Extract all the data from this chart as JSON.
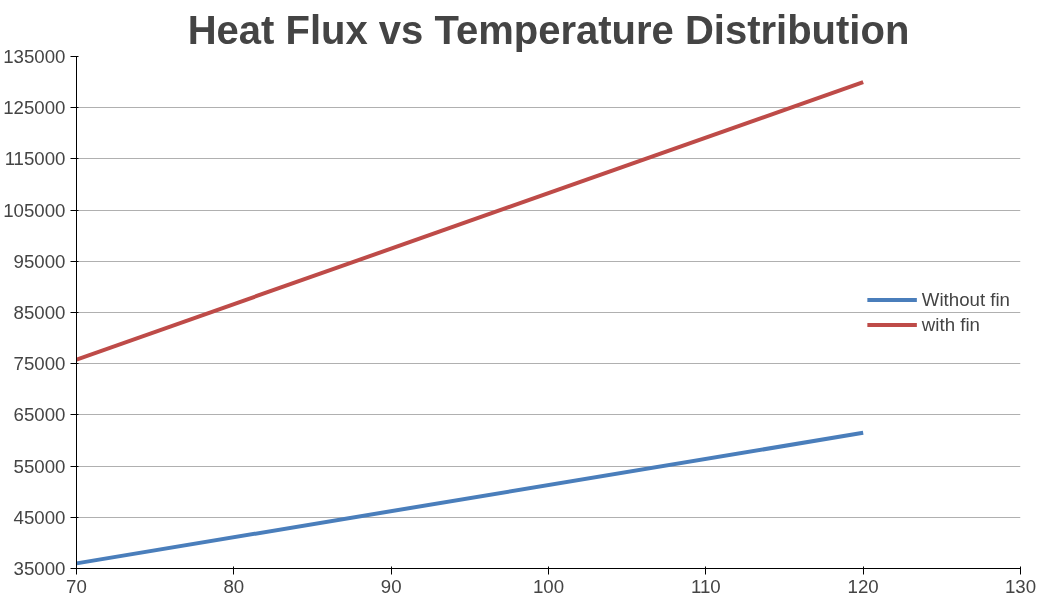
{
  "chart_data": {
    "type": "line",
    "title": "Heat Flux vs Temperature Distribution",
    "x": [
      70,
      120
    ],
    "series": [
      {
        "name": "Without fin",
        "color": "#4a7ebb",
        "values": [
          36000,
          61500
        ]
      },
      {
        "name": "with fin",
        "color": "#be4b48",
        "values": [
          75800,
          130000
        ]
      }
    ],
    "xlim": [
      70,
      130
    ],
    "xticks": [
      70,
      80,
      90,
      100,
      110,
      120,
      130
    ],
    "ylim": [
      35000,
      135000
    ],
    "yticks": [
      35000,
      45000,
      55000,
      65000,
      75000,
      85000,
      95000,
      105000,
      115000,
      125000,
      135000
    ],
    "grid": "y",
    "legend": "right",
    "marker": "none",
    "line_style": "solid"
  }
}
